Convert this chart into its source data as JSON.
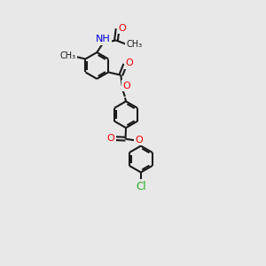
{
  "bg": "#e8e8e8",
  "bc": "#1a1a1a",
  "oc": "#ee0000",
  "nc": "#0000dd",
  "clc": "#22aa22",
  "lw": 1.5,
  "fs": 8.0,
  "figsize": [
    3.0,
    3.0
  ],
  "dpi": 100,
  "xlim": [
    0,
    10
  ],
  "ylim": [
    0,
    11
  ]
}
